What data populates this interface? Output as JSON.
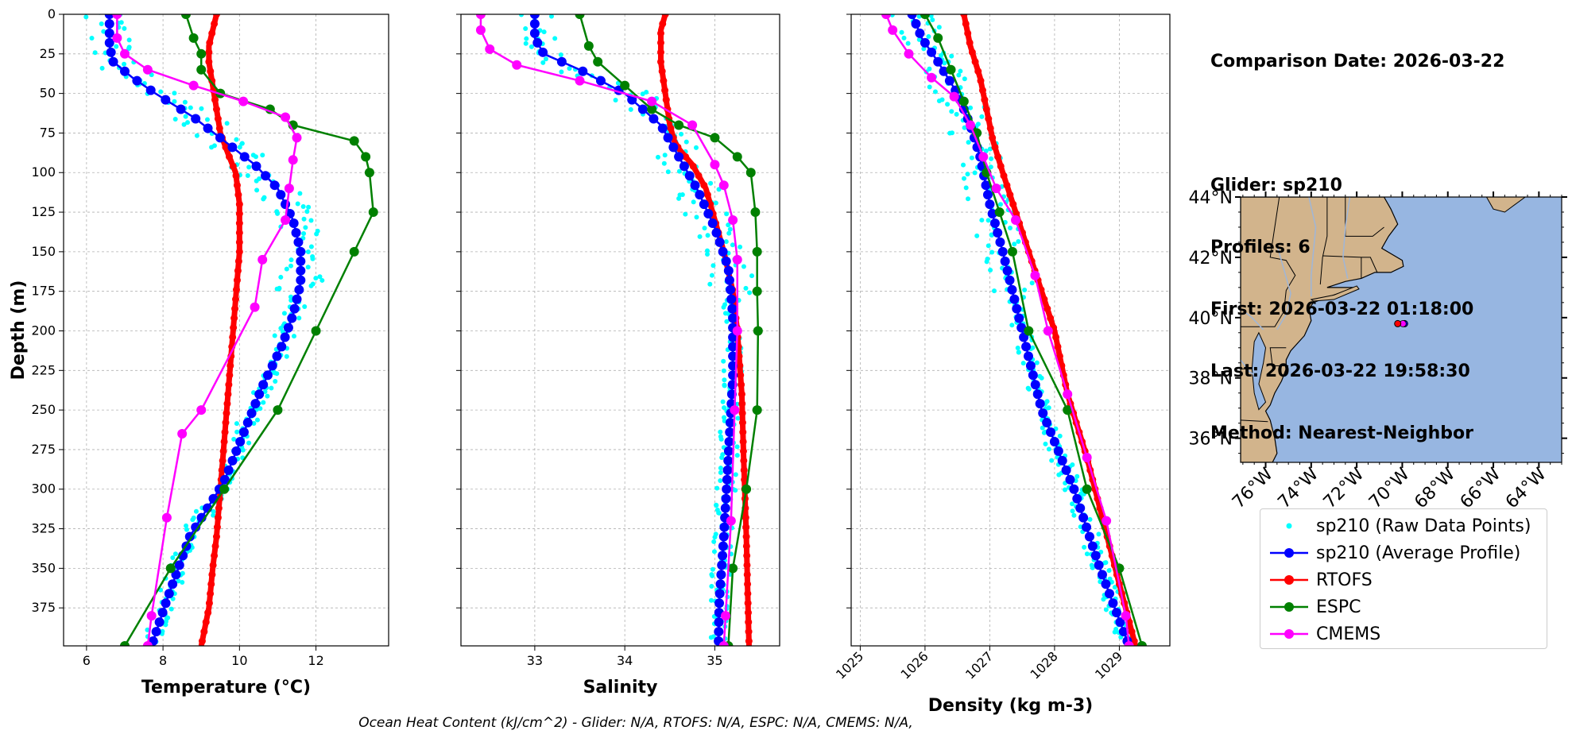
{
  "info": {
    "comparison_date": "Comparison Date: 2026-03-22",
    "glider": "Glider: sp210",
    "profiles": "Profiles: 6",
    "first": "First: 2026-03-22 01:18:00",
    "last": "Last: 2026-03-22 19:58:30",
    "method": "Method: Nearest-Neighbor"
  },
  "footer": "Ocean Heat Content (kJ/cm^2) - Glider: N/A,  RTOFS: N/A,  ESPC: N/A,  CMEMS: N/A,",
  "colors": {
    "raw": "#00ffff",
    "glider": "#0000ff",
    "rtofs": "#ff0000",
    "espc": "#008000",
    "cmems": "#ff00ff",
    "land": "#d2b48c",
    "ocean": "#97b6e1",
    "grid": "#b0b0b0"
  },
  "legend": [
    {
      "key": "raw",
      "label": "sp210 (Raw Data Points)"
    },
    {
      "key": "glider",
      "label": "sp210 (Average Profile)"
    },
    {
      "key": "rtofs",
      "label": "RTOFS"
    },
    {
      "key": "espc",
      "label": "ESPC"
    },
    {
      "key": "cmems",
      "label": "CMEMS"
    }
  ],
  "chart_data": [
    {
      "type": "line",
      "name": "temperature",
      "xlabel": "Temperature (°C)",
      "ylabel": "Depth (m)",
      "xlim": [
        5.4,
        13.9
      ],
      "ylim": [
        399,
        0
      ],
      "xticks": [
        6,
        8,
        10,
        12
      ],
      "yticks": [
        0,
        25,
        50,
        75,
        100,
        125,
        150,
        175,
        200,
        225,
        250,
        275,
        300,
        325,
        350,
        375
      ],
      "grid": true,
      "series": [
        {
          "name": "RTOFS",
          "key": "rtofs",
          "style": "thick",
          "points": [
            [
              9.4,
              0
            ],
            [
              9.3,
              10
            ],
            [
              9.2,
              20
            ],
            [
              9.2,
              30
            ],
            [
              9.3,
              45
            ],
            [
              9.4,
              60
            ],
            [
              9.5,
              75
            ],
            [
              9.7,
              88
            ],
            [
              9.9,
              100
            ],
            [
              10.0,
              120
            ],
            [
              10.0,
              150
            ],
            [
              9.9,
              180
            ],
            [
              9.8,
              210
            ],
            [
              9.7,
              240
            ],
            [
              9.6,
              270
            ],
            [
              9.5,
              300
            ],
            [
              9.4,
              330
            ],
            [
              9.3,
              350
            ],
            [
              9.2,
              375
            ],
            [
              9.0,
              399
            ]
          ]
        },
        {
          "name": "sp210 (Average Profile)",
          "key": "glider",
          "style": "dense",
          "points": [
            [
              6.6,
              0
            ],
            [
              6.6,
              20
            ],
            [
              6.7,
              30
            ],
            [
              7.2,
              40
            ],
            [
              7.8,
              50
            ],
            [
              8.8,
              65
            ],
            [
              9.6,
              80
            ],
            [
              10.4,
              95
            ],
            [
              11.0,
              110
            ],
            [
              11.4,
              130
            ],
            [
              11.6,
              150
            ],
            [
              11.6,
              170
            ],
            [
              11.4,
              190
            ],
            [
              11.1,
              210
            ],
            [
              10.6,
              235
            ],
            [
              10.1,
              265
            ],
            [
              9.6,
              295
            ],
            [
              8.7,
              330
            ],
            [
              8.1,
              370
            ],
            [
              7.7,
              399
            ]
          ]
        },
        {
          "name": "ESPC",
          "key": "espc",
          "style": "medium",
          "points": [
            [
              8.6,
              0
            ],
            [
              8.8,
              15
            ],
            [
              9.0,
              25
            ],
            [
              9.0,
              35
            ],
            [
              9.5,
              50
            ],
            [
              10.8,
              60
            ],
            [
              11.4,
              70
            ],
            [
              13.0,
              80
            ],
            [
              13.3,
              90
            ],
            [
              13.4,
              100
            ],
            [
              13.5,
              125
            ],
            [
              13.0,
              150
            ],
            [
              12.0,
              200
            ],
            [
              11.0,
              250
            ],
            [
              9.6,
              300
            ],
            [
              8.2,
              350
            ],
            [
              7.0,
              399
            ]
          ]
        },
        {
          "name": "CMEMS",
          "key": "cmems",
          "style": "medium",
          "points": [
            [
              6.8,
              0
            ],
            [
              6.8,
              15
            ],
            [
              7.0,
              25
            ],
            [
              7.6,
              35
            ],
            [
              8.8,
              45
            ],
            [
              10.1,
              55
            ],
            [
              11.2,
              65
            ],
            [
              11.5,
              78
            ],
            [
              11.4,
              92
            ],
            [
              11.3,
              110
            ],
            [
              11.2,
              130
            ],
            [
              10.6,
              155
            ],
            [
              10.4,
              185
            ],
            [
              9.0,
              250
            ],
            [
              8.5,
              265
            ],
            [
              8.1,
              318
            ],
            [
              7.7,
              380
            ],
            [
              7.6,
              399
            ]
          ]
        }
      ]
    },
    {
      "type": "line",
      "name": "salinity",
      "xlabel": "Salinity",
      "ylabel": "",
      "xlim": [
        32.18,
        35.72
      ],
      "ylim": [
        399,
        0
      ],
      "xticks": [
        33,
        34,
        35
      ],
      "yticks": [
        0,
        25,
        50,
        75,
        100,
        125,
        150,
        175,
        200,
        225,
        250,
        275,
        300,
        325,
        350,
        375
      ],
      "grid": true,
      "series": [
        {
          "name": "RTOFS",
          "key": "rtofs",
          "style": "thick",
          "points": [
            [
              34.45,
              0
            ],
            [
              34.4,
              10
            ],
            [
              34.4,
              30
            ],
            [
              34.45,
              50
            ],
            [
              34.5,
              70
            ],
            [
              34.55,
              80
            ],
            [
              34.6,
              85
            ],
            [
              34.75,
              95
            ],
            [
              34.9,
              110
            ],
            [
              35.0,
              130
            ],
            [
              35.1,
              150
            ],
            [
              35.2,
              175
            ],
            [
              35.25,
              200
            ],
            [
              35.3,
              240
            ],
            [
              35.32,
              280
            ],
            [
              35.35,
              330
            ],
            [
              35.38,
              399
            ]
          ]
        },
        {
          "name": "sp210 (Average Profile)",
          "key": "glider",
          "style": "dense",
          "points": [
            [
              33.0,
              0
            ],
            [
              33.0,
              15
            ],
            [
              33.1,
              25
            ],
            [
              33.5,
              35
            ],
            [
              34.0,
              50
            ],
            [
              34.4,
              70
            ],
            [
              34.6,
              90
            ],
            [
              34.8,
              110
            ],
            [
              35.0,
              135
            ],
            [
              35.15,
              160
            ],
            [
              35.2,
              190
            ],
            [
              35.2,
              230
            ],
            [
              35.15,
              280
            ],
            [
              35.1,
              330
            ],
            [
              35.05,
              370
            ],
            [
              35.04,
              399
            ]
          ]
        },
        {
          "name": "ESPC",
          "key": "espc",
          "style": "medium",
          "points": [
            [
              33.5,
              0
            ],
            [
              33.6,
              20
            ],
            [
              33.7,
              30
            ],
            [
              34.0,
              45
            ],
            [
              34.3,
              60
            ],
            [
              34.6,
              70
            ],
            [
              35.0,
              78
            ],
            [
              35.25,
              90
            ],
            [
              35.4,
              100
            ],
            [
              35.45,
              125
            ],
            [
              35.47,
              150
            ],
            [
              35.47,
              175
            ],
            [
              35.48,
              200
            ],
            [
              35.47,
              250
            ],
            [
              35.35,
              300
            ],
            [
              35.2,
              350
            ],
            [
              35.15,
              399
            ]
          ]
        },
        {
          "name": "CMEMS",
          "key": "cmems",
          "style": "medium",
          "points": [
            [
              32.4,
              0
            ],
            [
              32.4,
              10
            ],
            [
              32.5,
              22
            ],
            [
              32.8,
              32
            ],
            [
              33.5,
              42
            ],
            [
              34.3,
              55
            ],
            [
              34.75,
              70
            ],
            [
              35.0,
              95
            ],
            [
              35.1,
              108
            ],
            [
              35.2,
              130
            ],
            [
              35.25,
              155
            ],
            [
              35.25,
              200
            ],
            [
              35.22,
              250
            ],
            [
              35.18,
              320
            ],
            [
              35.12,
              380
            ],
            [
              35.1,
              399
            ]
          ]
        }
      ]
    },
    {
      "type": "line",
      "name": "density",
      "xlabel": "Density (kg m-3)",
      "ylabel": "",
      "xlim": [
        1024.86,
        1029.78
      ],
      "ylim": [
        399,
        0
      ],
      "xticks": [
        1025,
        1026,
        1027,
        1028,
        1029
      ],
      "yticks": [
        0,
        25,
        50,
        75,
        100,
        125,
        150,
        175,
        200,
        225,
        250,
        275,
        300,
        325,
        350,
        375
      ],
      "grid": true,
      "series": [
        {
          "name": "RTOFS",
          "key": "rtofs",
          "style": "thick",
          "points": [
            [
              1026.6,
              0
            ],
            [
              1026.7,
              20
            ],
            [
              1026.85,
              40
            ],
            [
              1026.95,
              60
            ],
            [
              1027.05,
              80
            ],
            [
              1027.2,
              100
            ],
            [
              1027.4,
              125
            ],
            [
              1027.6,
              150
            ],
            [
              1027.8,
              175
            ],
            [
              1028.0,
              200
            ],
            [
              1028.2,
              240
            ],
            [
              1028.5,
              280
            ],
            [
              1028.75,
              320
            ],
            [
              1029.0,
              360
            ],
            [
              1029.25,
              399
            ]
          ]
        },
        {
          "name": "sp210 (Average Profile)",
          "key": "glider",
          "style": "dense",
          "points": [
            [
              1025.8,
              0
            ],
            [
              1025.95,
              15
            ],
            [
              1026.2,
              30
            ],
            [
              1026.5,
              50
            ],
            [
              1026.7,
              70
            ],
            [
              1026.85,
              90
            ],
            [
              1027.0,
              120
            ],
            [
              1027.2,
              150
            ],
            [
              1027.5,
              200
            ],
            [
              1027.8,
              250
            ],
            [
              1028.3,
              300
            ],
            [
              1028.7,
              350
            ],
            [
              1029.15,
              399
            ]
          ]
        },
        {
          "name": "ESPC",
          "key": "espc",
          "style": "medium",
          "points": [
            [
              1026.0,
              0
            ],
            [
              1026.2,
              15
            ],
            [
              1026.4,
              35
            ],
            [
              1026.6,
              55
            ],
            [
              1026.8,
              75
            ],
            [
              1026.95,
              100
            ],
            [
              1027.15,
              125
            ],
            [
              1027.35,
              150
            ],
            [
              1027.6,
              200
            ],
            [
              1028.2,
              250
            ],
            [
              1028.5,
              300
            ],
            [
              1029.0,
              350
            ],
            [
              1029.35,
              399
            ]
          ]
        },
        {
          "name": "CMEMS",
          "key": "cmems",
          "style": "medium",
          "points": [
            [
              1025.4,
              0
            ],
            [
              1025.5,
              10
            ],
            [
              1025.75,
              25
            ],
            [
              1026.1,
              40
            ],
            [
              1026.45,
              52
            ],
            [
              1026.7,
              70
            ],
            [
              1026.9,
              90
            ],
            [
              1027.1,
              110
            ],
            [
              1027.4,
              130
            ],
            [
              1027.7,
              165
            ],
            [
              1027.9,
              200
            ],
            [
              1028.2,
              240
            ],
            [
              1028.5,
              280
            ],
            [
              1028.8,
              320
            ],
            [
              1029.1,
              380
            ],
            [
              1029.15,
              399
            ]
          ]
        }
      ]
    }
  ],
  "map": {
    "lat_labels": [
      "44°N",
      "42°N",
      "40°N",
      "38°N",
      "36°N"
    ],
    "lon_labels": [
      "76°W",
      "74°W",
      "72°W",
      "70°W",
      "68°W",
      "66°W",
      "64°W"
    ],
    "lat_values": [
      44,
      42,
      40,
      38,
      36
    ],
    "lon_values": [
      -76,
      -74,
      -72,
      -70,
      -68,
      -66,
      -64
    ],
    "extent": {
      "lon_min": -77.1,
      "lon_max": -63.0,
      "lat_min": 35.2,
      "lat_max": 44.0
    },
    "glider_location": {
      "lon": -69.9,
      "lat": 39.8
    },
    "model_location": {
      "lon": -70.2,
      "lat": 39.8
    }
  }
}
